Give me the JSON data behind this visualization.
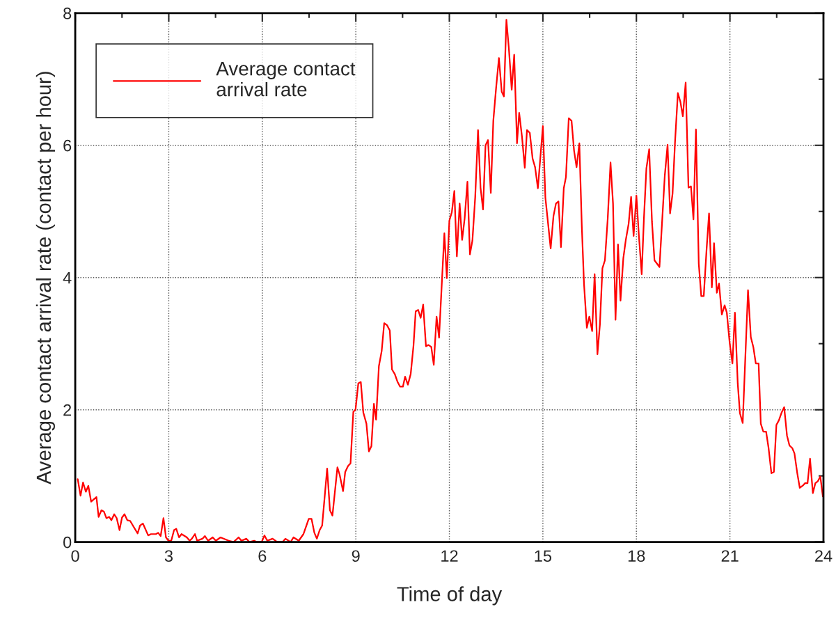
{
  "chart_data": {
    "type": "line",
    "xlabel": "Time of day",
    "ylabel": "Average contact arrival rate (contact per hour)",
    "xlim": [
      0,
      24
    ],
    "xticks": [
      0,
      3,
      6,
      9,
      12,
      15,
      18,
      21,
      24
    ],
    "ylim": [
      0,
      8
    ],
    "yticks": [
      0,
      2,
      4,
      6,
      8
    ],
    "grid": true,
    "legend": "top left",
    "marker": "none",
    "line_style": "solid",
    "series": [
      {
        "name": "Average contact\narrival rate",
        "color": "#ff0000",
        "x": [
          0.08,
          0.17,
          0.25,
          0.34,
          0.42,
          0.51,
          0.68,
          0.75,
          0.84,
          0.92,
          1.0,
          1.09,
          1.16,
          1.25,
          1.33,
          1.42,
          1.5,
          1.58,
          1.67,
          1.76,
          2.0,
          2.08,
          2.17,
          2.34,
          2.43,
          2.59,
          2.66,
          2.74,
          2.83,
          2.91,
          2.99,
          3.08,
          3.17,
          3.24,
          3.33,
          3.41,
          3.58,
          3.67,
          3.74,
          3.84,
          3.91,
          4.08,
          4.16,
          4.26,
          4.41,
          4.51,
          4.66,
          4.92,
          5.08,
          5.24,
          5.33,
          5.49,
          5.59,
          5.74,
          5.83,
          5.98,
          6.07,
          6.16,
          6.33,
          6.48,
          6.65,
          6.74,
          6.91,
          7.0,
          7.17,
          7.32,
          7.49,
          7.58,
          7.67,
          7.75,
          7.84,
          7.92,
          8.08,
          8.17,
          8.25,
          8.41,
          8.48,
          8.59,
          8.66,
          8.75,
          8.83,
          8.92,
          8.99,
          9.08,
          9.16,
          9.24,
          9.34,
          9.42,
          9.5,
          9.58,
          9.65,
          9.74,
          9.83,
          9.91,
          10.0,
          10.09,
          10.16,
          10.25,
          10.34,
          10.42,
          10.51,
          10.58,
          10.67,
          10.76,
          10.85,
          10.92,
          11.0,
          11.08,
          11.16,
          11.25,
          11.33,
          11.42,
          11.5,
          11.59,
          11.67,
          11.84,
          11.92,
          12.0,
          12.08,
          12.16,
          12.24,
          12.33,
          12.41,
          12.49,
          12.58,
          12.66,
          12.74,
          12.83,
          12.92,
          13.0,
          13.08,
          13.16,
          13.24,
          13.33,
          13.41,
          13.5,
          13.59,
          13.68,
          13.75,
          13.83,
          13.91,
          14.0,
          14.08,
          14.17,
          14.24,
          14.33,
          14.42,
          14.49,
          14.58,
          14.67,
          14.75,
          14.84,
          15.0,
          15.08,
          15.25,
          15.34,
          15.42,
          15.5,
          15.58,
          15.67,
          15.74,
          15.83,
          15.92,
          16.0,
          16.08,
          16.17,
          16.25,
          16.32,
          16.41,
          16.49,
          16.58,
          16.66,
          16.75,
          16.83,
          16.91,
          16.99,
          17.08,
          17.17,
          17.25,
          17.33,
          17.41,
          17.49,
          17.58,
          17.66,
          17.75,
          17.83,
          17.91,
          18.0,
          18.08,
          18.17,
          18.24,
          18.32,
          18.41,
          18.5,
          18.58,
          18.74,
          18.91,
          19.0,
          19.08,
          19.16,
          19.24,
          19.33,
          19.41,
          19.49,
          19.58,
          19.67,
          19.75,
          19.83,
          19.91,
          20.0,
          20.08,
          20.16,
          20.25,
          20.33,
          20.42,
          20.49,
          20.58,
          20.65,
          20.74,
          20.83,
          20.9,
          20.99,
          21.08,
          21.16,
          21.25,
          21.32,
          21.41,
          21.58,
          21.67,
          21.75,
          21.83,
          21.92,
          21.99,
          22.07,
          22.16,
          22.24,
          22.33,
          22.41,
          22.49,
          22.57,
          22.66,
          22.74,
          22.83,
          22.91,
          23.0,
          23.07,
          23.16,
          23.24,
          23.33,
          23.41,
          23.49,
          23.57,
          23.66,
          23.74,
          23.82,
          23.9,
          23.98
        ],
        "values": [
          0.95,
          0.7,
          0.9,
          0.76,
          0.85,
          0.61,
          0.68,
          0.38,
          0.48,
          0.46,
          0.36,
          0.38,
          0.33,
          0.42,
          0.36,
          0.18,
          0.37,
          0.42,
          0.33,
          0.32,
          0.13,
          0.25,
          0.28,
          0.1,
          0.12,
          0.12,
          0.14,
          0.09,
          0.36,
          0.07,
          0.02,
          0.02,
          0.18,
          0.2,
          0.07,
          0.12,
          0.07,
          0.02,
          0.05,
          0.12,
          0.02,
          0.05,
          0.09,
          0.02,
          0.07,
          0.02,
          0.07,
          0.02,
          0.0,
          0.07,
          0.02,
          0.05,
          0.0,
          0.02,
          0.0,
          0.0,
          0.1,
          0.02,
          0.05,
          0.0,
          0.0,
          0.05,
          0.0,
          0.07,
          0.02,
          0.12,
          0.35,
          0.35,
          0.14,
          0.05,
          0.18,
          0.25,
          1.11,
          0.48,
          0.4,
          1.13,
          1.02,
          0.77,
          1.06,
          1.15,
          1.19,
          1.97,
          2.0,
          2.4,
          2.42,
          1.96,
          1.79,
          1.37,
          1.45,
          2.09,
          1.85,
          2.66,
          2.89,
          3.31,
          3.28,
          3.2,
          2.61,
          2.54,
          2.42,
          2.35,
          2.35,
          2.5,
          2.38,
          2.54,
          2.97,
          3.49,
          3.51,
          3.39,
          3.59,
          2.96,
          2.98,
          2.95,
          2.68,
          3.41,
          3.09,
          4.67,
          3.99,
          4.86,
          4.99,
          5.31,
          4.32,
          5.12,
          4.57,
          4.89,
          5.45,
          4.35,
          4.56,
          5.22,
          6.23,
          5.36,
          5.03,
          6.0,
          6.08,
          5.28,
          6.37,
          6.87,
          7.32,
          6.81,
          6.74,
          7.9,
          7.46,
          6.84,
          7.37,
          6.03,
          6.49,
          6.13,
          5.66,
          6.23,
          6.19,
          5.8,
          5.67,
          5.35,
          6.29,
          5.21,
          4.44,
          4.93,
          5.12,
          5.15,
          4.46,
          5.35,
          5.52,
          6.41,
          6.37,
          5.92,
          5.67,
          6.03,
          4.76,
          3.9,
          3.24,
          3.41,
          3.19,
          4.05,
          2.84,
          3.29,
          4.14,
          4.26,
          4.89,
          5.74,
          5.12,
          3.36,
          4.5,
          3.65,
          4.29,
          4.57,
          4.81,
          5.22,
          4.63,
          5.24,
          4.63,
          4.05,
          4.88,
          5.65,
          5.94,
          4.84,
          4.26,
          4.16,
          5.54,
          6.01,
          4.97,
          5.27,
          6.06,
          6.79,
          6.66,
          6.44,
          6.95,
          5.36,
          5.38,
          4.88,
          6.24,
          4.21,
          3.72,
          3.72,
          4.42,
          4.97,
          3.85,
          4.52,
          3.77,
          3.91,
          3.44,
          3.58,
          3.47,
          3.02,
          2.7,
          3.47,
          2.4,
          1.95,
          1.8,
          3.81,
          3.1,
          2.95,
          2.7,
          2.7,
          1.79,
          1.67,
          1.67,
          1.42,
          1.04,
          1.06,
          1.77,
          1.84,
          1.96,
          2.04,
          1.61,
          1.46,
          1.42,
          1.34,
          1.04,
          0.82,
          0.85,
          0.89,
          0.89,
          1.26,
          0.74,
          0.89,
          0.92,
          0.99,
          0.69
        ]
      }
    ]
  }
}
